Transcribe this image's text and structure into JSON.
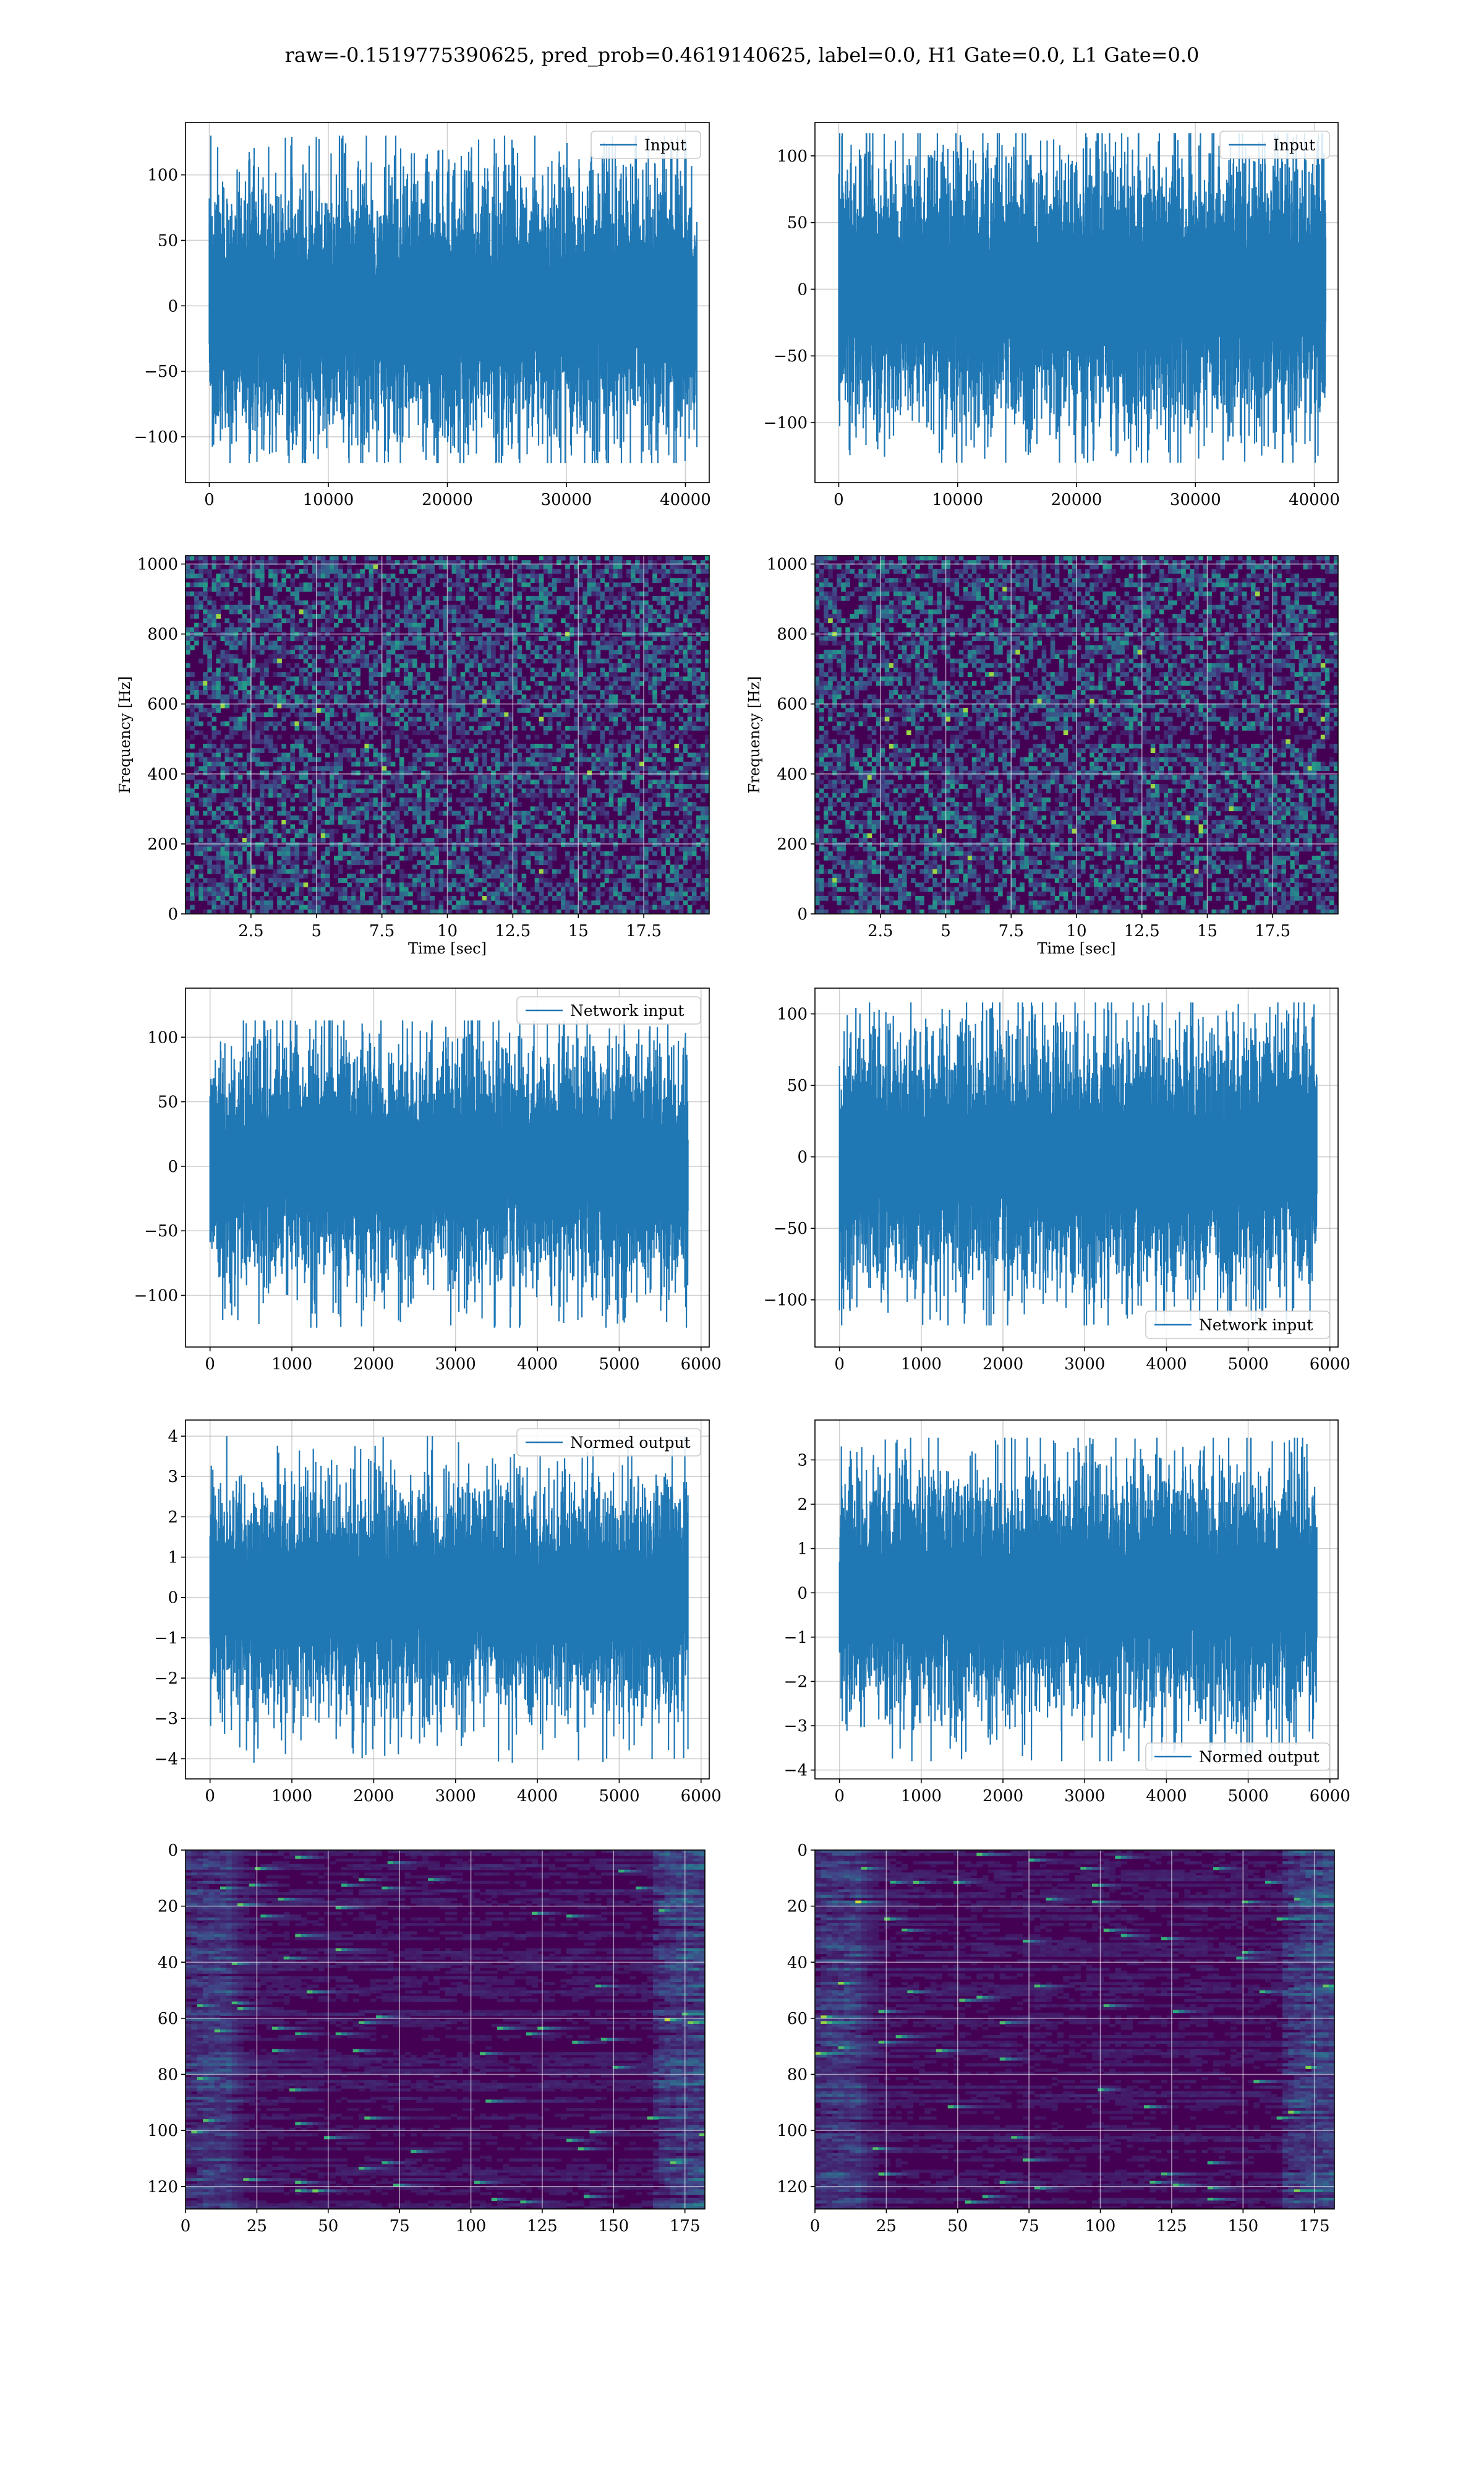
{
  "suptitle": "raw=-0.1519775390625, pred_prob=0.4619140625, label=0.0, H1 Gate=0.0, L1 Gate=0.0",
  "colors": {
    "line": "#1f77b4",
    "grid": "#b0b0b0",
    "viridis_low": "#440154",
    "viridis_high": "#fde725"
  },
  "chart_data": [
    {
      "id": "r1c1",
      "type": "line",
      "legend": "Input",
      "legend_loc": "upper right",
      "xlim": [
        -2000,
        42000
      ],
      "ylim": [
        -135,
        140
      ],
      "xticks": [
        0,
        10000,
        20000,
        30000,
        40000
      ],
      "yticks": [
        -100,
        -50,
        0,
        50,
        100
      ],
      "n": 40960,
      "approx_band": [
        -62,
        62
      ],
      "approx_extremes": [
        -120,
        130
      ],
      "grid": true
    },
    {
      "id": "r1c2",
      "type": "line",
      "legend": "Input",
      "legend_loc": "upper right",
      "xlim": [
        -2000,
        42000
      ],
      "ylim": [
        -145,
        125
      ],
      "xticks": [
        0,
        10000,
        20000,
        30000,
        40000
      ],
      "yticks": [
        -100,
        -50,
        0,
        50,
        100
      ],
      "n": 40960,
      "approx_band": [
        -62,
        62
      ],
      "approx_extremes": [
        -130,
        117
      ],
      "grid": true
    },
    {
      "id": "r2c1",
      "type": "heatmap",
      "colormap": "viridis",
      "kind": "spectrogram",
      "xlabel": "Time [sec]",
      "ylabel": "Frequency [Hz]",
      "xlim": [
        0,
        20
      ],
      "ylim": [
        0,
        1024
      ],
      "xticks": [
        2.5,
        5.0,
        7.5,
        10.0,
        12.5,
        15.0,
        17.5
      ],
      "yticks": [
        0,
        200,
        400,
        600,
        800,
        1000
      ],
      "grid": true
    },
    {
      "id": "r2c2",
      "type": "heatmap",
      "colormap": "viridis",
      "kind": "spectrogram",
      "xlabel": "Time [sec]",
      "ylabel": "Frequency [Hz]",
      "xlim": [
        0,
        20
      ],
      "ylim": [
        0,
        1024
      ],
      "xticks": [
        2.5,
        5.0,
        7.5,
        10.0,
        12.5,
        15.0,
        17.5
      ],
      "yticks": [
        0,
        200,
        400,
        600,
        800,
        1000
      ],
      "grid": true
    },
    {
      "id": "r3c1",
      "type": "line",
      "legend": "Network input",
      "legend_loc": "upper right",
      "xlim": [
        -300,
        6100
      ],
      "ylim": [
        -140,
        138
      ],
      "xticks": [
        0,
        1000,
        2000,
        3000,
        4000,
        5000,
        6000
      ],
      "yticks": [
        -100,
        -50,
        0,
        50,
        100
      ],
      "n": 5840,
      "approx_band": [
        -55,
        55
      ],
      "approx_extremes": [
        -125,
        113
      ],
      "grid": true
    },
    {
      "id": "r3c2",
      "type": "line",
      "legend": "Network input",
      "legend_loc": "lower right",
      "xlim": [
        -300,
        6100
      ],
      "ylim": [
        -133,
        118
      ],
      "xticks": [
        0,
        1000,
        2000,
        3000,
        4000,
        5000,
        6000
      ],
      "yticks": [
        -100,
        -50,
        0,
        50,
        100
      ],
      "n": 5840,
      "approx_band": [
        -55,
        55
      ],
      "approx_extremes": [
        -118,
        108
      ],
      "grid": true
    },
    {
      "id": "r4c1",
      "type": "line",
      "legend": "Normed output",
      "legend_loc": "upper right",
      "xlim": [
        -300,
        6100
      ],
      "ylim": [
        -4.5,
        4.4
      ],
      "xticks": [
        0,
        1000,
        2000,
        3000,
        4000,
        5000,
        6000
      ],
      "yticks": [
        -4,
        -3,
        -2,
        -1,
        0,
        1,
        2,
        3,
        4
      ],
      "n": 5840,
      "approx_band": [
        -1.7,
        1.7
      ],
      "approx_extremes": [
        -4.1,
        4.0
      ],
      "grid": true
    },
    {
      "id": "r4c2",
      "type": "line",
      "legend": "Normed output",
      "legend_loc": "lower right",
      "xlim": [
        -300,
        6100
      ],
      "ylim": [
        -4.2,
        3.9
      ],
      "xticks": [
        0,
        1000,
        2000,
        3000,
        4000,
        5000,
        6000
      ],
      "yticks": [
        -4,
        -3,
        -2,
        -1,
        0,
        1,
        2,
        3
      ],
      "n": 5840,
      "approx_band": [
        -1.7,
        1.7
      ],
      "approx_extremes": [
        -3.8,
        3.5
      ],
      "grid": true
    },
    {
      "id": "r5c1",
      "type": "heatmap",
      "colormap": "viridis",
      "kind": "feature_map",
      "xlim": [
        0,
        182
      ],
      "ylim": [
        128,
        0
      ],
      "xticks": [
        0,
        25,
        50,
        75,
        100,
        125,
        150,
        175
      ],
      "yticks": [
        0,
        20,
        40,
        60,
        80,
        100,
        120
      ],
      "grid": true
    },
    {
      "id": "r5c2",
      "type": "heatmap",
      "colormap": "viridis",
      "kind": "feature_map",
      "xlim": [
        0,
        182
      ],
      "ylim": [
        128,
        0
      ],
      "xticks": [
        0,
        25,
        50,
        75,
        100,
        125,
        150,
        175
      ],
      "yticks": [
        0,
        20,
        40,
        60,
        80,
        100,
        120
      ],
      "grid": true
    }
  ]
}
